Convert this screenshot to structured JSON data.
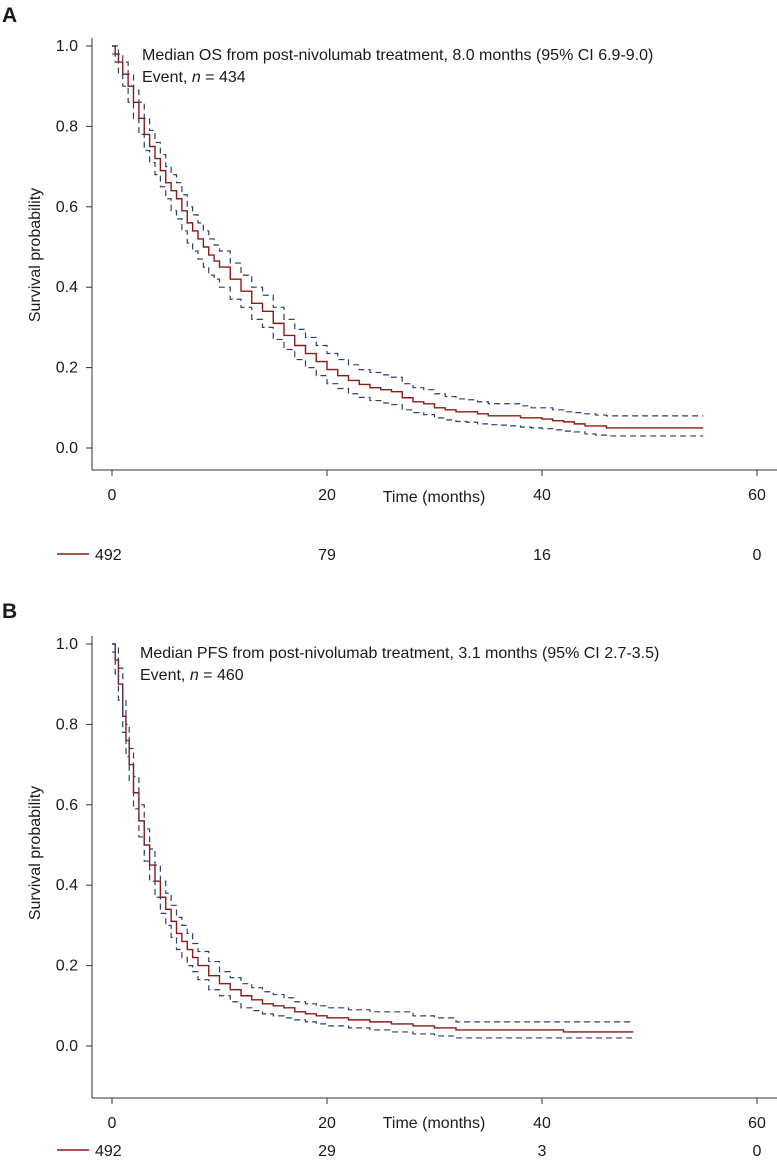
{
  "chart_data": [
    {
      "panel": "A",
      "type": "line",
      "annotation": {
        "line1": "Median OS from post-nivolumab treatment, 8.0 months (95% CI 6.9-9.0)",
        "line2_prefix": "Event, ",
        "line2_var": "n",
        "line2_suffix": " = 434"
      },
      "xlabel": "Time (months)",
      "ylabel": "Survival probability",
      "xlim": [
        0,
        60
      ],
      "ylim": [
        0,
        1
      ],
      "xticks": [
        0,
        20,
        40,
        60
      ],
      "yticks": [
        0.0,
        0.2,
        0.4,
        0.6,
        0.8,
        1.0
      ],
      "xtick_labels": [
        "0",
        "20",
        "40",
        "60"
      ],
      "ytick_labels": [
        "0.0",
        "0.2",
        "0.4",
        "0.6",
        "0.8",
        "1.0"
      ],
      "grid": false,
      "series": [
        {
          "role": "estimate",
          "color": "#8b1a1a",
          "style": "solid",
          "x": [
            0,
            0.3,
            0.6,
            1,
            1.5,
            2,
            2.5,
            3,
            3.5,
            4,
            4.5,
            5,
            5.5,
            6,
            6.5,
            7,
            7.5,
            8,
            8.5,
            9,
            9.5,
            10,
            11,
            12,
            13,
            14,
            15,
            16,
            17,
            18,
            19,
            20,
            21,
            22,
            23,
            24,
            25,
            26,
            27,
            28,
            29,
            30,
            31,
            32,
            33,
            34,
            35,
            36,
            37,
            38,
            39,
            40,
            41,
            42,
            43,
            44,
            45,
            46,
            47,
            48,
            49,
            50,
            51,
            52,
            53,
            54,
            55
          ],
          "y": [
            1.0,
            0.98,
            0.96,
            0.93,
            0.9,
            0.86,
            0.82,
            0.78,
            0.75,
            0.72,
            0.69,
            0.66,
            0.64,
            0.62,
            0.59,
            0.56,
            0.54,
            0.52,
            0.5,
            0.48,
            0.465,
            0.45,
            0.42,
            0.39,
            0.36,
            0.34,
            0.31,
            0.28,
            0.255,
            0.235,
            0.215,
            0.195,
            0.18,
            0.168,
            0.158,
            0.15,
            0.145,
            0.14,
            0.125,
            0.115,
            0.11,
            0.1,
            0.095,
            0.09,
            0.09,
            0.085,
            0.08,
            0.08,
            0.08,
            0.075,
            0.075,
            0.072,
            0.068,
            0.065,
            0.06,
            0.055,
            0.055,
            0.05,
            0.05,
            0.05,
            0.05,
            0.05,
            0.05,
            0.05,
            0.05,
            0.05,
            0.05
          ]
        },
        {
          "role": "upper-ci",
          "color": "#2c3e6e",
          "style": "dashed",
          "x": [
            0,
            0.3,
            0.6,
            1,
            1.5,
            2,
            2.5,
            3,
            3.5,
            4,
            4.5,
            5,
            5.5,
            6,
            6.5,
            7,
            7.5,
            8,
            8.5,
            9,
            9.5,
            10,
            11,
            12,
            13,
            14,
            15,
            16,
            17,
            18,
            19,
            20,
            21,
            22,
            23,
            24,
            25,
            26,
            27,
            28,
            29,
            30,
            31,
            32,
            33,
            34,
            35,
            36,
            37,
            38,
            39,
            40,
            41,
            42,
            43,
            44,
            45,
            46,
            47,
            48,
            49,
            50,
            51,
            52,
            53,
            54,
            55
          ],
          "y": [
            1.0,
            1.0,
            0.98,
            0.96,
            0.93,
            0.89,
            0.86,
            0.82,
            0.79,
            0.76,
            0.73,
            0.7,
            0.68,
            0.66,
            0.63,
            0.6,
            0.58,
            0.56,
            0.54,
            0.52,
            0.505,
            0.49,
            0.46,
            0.43,
            0.4,
            0.38,
            0.35,
            0.32,
            0.295,
            0.275,
            0.255,
            0.235,
            0.22,
            0.207,
            0.195,
            0.188,
            0.182,
            0.176,
            0.16,
            0.15,
            0.145,
            0.135,
            0.128,
            0.122,
            0.12,
            0.115,
            0.11,
            0.11,
            0.11,
            0.105,
            0.1,
            0.1,
            0.095,
            0.09,
            0.088,
            0.085,
            0.082,
            0.08,
            0.08,
            0.08,
            0.08,
            0.08,
            0.08,
            0.08,
            0.08,
            0.08,
            0.08
          ]
        },
        {
          "role": "lower-ci",
          "color": "#2c3e6e",
          "style": "dashed",
          "x": [
            0,
            0.3,
            0.6,
            1,
            1.5,
            2,
            2.5,
            3,
            3.5,
            4,
            4.5,
            5,
            5.5,
            6,
            6.5,
            7,
            7.5,
            8,
            8.5,
            9,
            9.5,
            10,
            11,
            12,
            13,
            14,
            15,
            16,
            17,
            18,
            19,
            20,
            21,
            22,
            23,
            24,
            25,
            26,
            27,
            28,
            29,
            30,
            31,
            32,
            33,
            34,
            35,
            36,
            37,
            38,
            39,
            40,
            41,
            42,
            43,
            44,
            45,
            46,
            47,
            48,
            49,
            50,
            51,
            52,
            53,
            54,
            55
          ],
          "y": [
            0.98,
            0.96,
            0.93,
            0.9,
            0.86,
            0.82,
            0.78,
            0.74,
            0.71,
            0.68,
            0.65,
            0.62,
            0.59,
            0.57,
            0.54,
            0.51,
            0.49,
            0.47,
            0.45,
            0.43,
            0.42,
            0.4,
            0.37,
            0.35,
            0.32,
            0.3,
            0.27,
            0.245,
            0.22,
            0.2,
            0.18,
            0.16,
            0.148,
            0.135,
            0.126,
            0.118,
            0.112,
            0.108,
            0.095,
            0.088,
            0.083,
            0.075,
            0.07,
            0.066,
            0.064,
            0.06,
            0.058,
            0.057,
            0.055,
            0.052,
            0.05,
            0.048,
            0.045,
            0.042,
            0.04,
            0.035,
            0.032,
            0.03,
            0.03,
            0.03,
            0.03,
            0.03,
            0.03,
            0.03,
            0.03,
            0.03,
            0.03
          ]
        }
      ],
      "risk_table": {
        "times": [
          0,
          20,
          40,
          60
        ],
        "counts": [
          "492",
          "79",
          "16",
          "0"
        ],
        "swatch_color": "#8b1a1a"
      }
    },
    {
      "panel": "B",
      "type": "line",
      "annotation": {
        "line1": "Median PFS from post-nivolumab treatment, 3.1 months (95% CI 2.7-3.5)",
        "line2_prefix": "Event, ",
        "line2_var": "n",
        "line2_suffix": " = 460"
      },
      "xlabel": "Time (months)",
      "ylabel": "Survival probability",
      "xlim": [
        0,
        60
      ],
      "ylim": [
        0,
        1
      ],
      "xticks": [
        0,
        20,
        40,
        60
      ],
      "yticks": [
        0.0,
        0.2,
        0.4,
        0.6,
        0.8,
        1.0
      ],
      "xtick_labels": [
        "0",
        "20",
        "40",
        "60"
      ],
      "ytick_labels": [
        "0.0",
        "0.2",
        "0.4",
        "0.6",
        "0.8",
        "1.0"
      ],
      "grid": false,
      "series": [
        {
          "role": "estimate",
          "color": "#8b1a1a",
          "style": "solid",
          "x": [
            0,
            0.3,
            0.6,
            1,
            1.3,
            1.6,
            2,
            2.5,
            3,
            3.5,
            4,
            4.5,
            5,
            5.5,
            6,
            6.5,
            7,
            7.5,
            8,
            9,
            10,
            11,
            12,
            13,
            14,
            15,
            16,
            17,
            18,
            19,
            20,
            22,
            24,
            26,
            28,
            30,
            32,
            34,
            36,
            38,
            40,
            42,
            44,
            46,
            48.5
          ],
          "y": [
            1.0,
            0.96,
            0.9,
            0.82,
            0.76,
            0.7,
            0.63,
            0.56,
            0.5,
            0.45,
            0.41,
            0.37,
            0.34,
            0.31,
            0.28,
            0.26,
            0.24,
            0.22,
            0.2,
            0.175,
            0.155,
            0.14,
            0.125,
            0.115,
            0.105,
            0.1,
            0.095,
            0.085,
            0.08,
            0.075,
            0.07,
            0.065,
            0.06,
            0.055,
            0.05,
            0.045,
            0.04,
            0.04,
            0.04,
            0.04,
            0.04,
            0.035,
            0.035,
            0.035,
            0.035
          ]
        },
        {
          "role": "upper-ci",
          "color": "#2c3e6e",
          "style": "dashed",
          "x": [
            0,
            0.3,
            0.6,
            1,
            1.3,
            1.6,
            2,
            2.5,
            3,
            3.5,
            4,
            4.5,
            5,
            5.5,
            6,
            6.5,
            7,
            7.5,
            8,
            9,
            10,
            11,
            12,
            13,
            14,
            15,
            16,
            17,
            18,
            19,
            20,
            22,
            24,
            26,
            28,
            30,
            32,
            34,
            36,
            38,
            40,
            42,
            44,
            46,
            48.5
          ],
          "y": [
            1.0,
            0.99,
            0.94,
            0.86,
            0.8,
            0.74,
            0.67,
            0.6,
            0.54,
            0.49,
            0.45,
            0.41,
            0.38,
            0.35,
            0.32,
            0.3,
            0.28,
            0.255,
            0.235,
            0.21,
            0.185,
            0.17,
            0.155,
            0.145,
            0.135,
            0.128,
            0.12,
            0.11,
            0.105,
            0.1,
            0.095,
            0.09,
            0.085,
            0.085,
            0.075,
            0.07,
            0.06,
            0.06,
            0.06,
            0.06,
            0.06,
            0.06,
            0.06,
            0.06,
            0.06
          ]
        },
        {
          "role": "lower-ci",
          "color": "#2c3e6e",
          "style": "dashed",
          "x": [
            0,
            0.3,
            0.6,
            1,
            1.3,
            1.6,
            2,
            2.5,
            3,
            3.5,
            4,
            4.5,
            5,
            5.5,
            6,
            6.5,
            7,
            7.5,
            8,
            9,
            10,
            11,
            12,
            13,
            14,
            15,
            16,
            17,
            18,
            19,
            20,
            22,
            24,
            26,
            28,
            30,
            32,
            34,
            36,
            38,
            40,
            42,
            44,
            46,
            48.5
          ],
          "y": [
            0.98,
            0.92,
            0.86,
            0.78,
            0.72,
            0.66,
            0.59,
            0.52,
            0.46,
            0.41,
            0.37,
            0.33,
            0.3,
            0.27,
            0.24,
            0.22,
            0.2,
            0.185,
            0.165,
            0.14,
            0.125,
            0.11,
            0.095,
            0.088,
            0.08,
            0.075,
            0.07,
            0.065,
            0.06,
            0.055,
            0.05,
            0.045,
            0.04,
            0.035,
            0.03,
            0.025,
            0.02,
            0.02,
            0.02,
            0.02,
            0.02,
            0.02,
            0.02,
            0.02,
            0.02
          ]
        }
      ],
      "risk_table": {
        "times": [
          0,
          20,
          40,
          60
        ],
        "counts": [
          "492",
          "29",
          "3",
          "0"
        ],
        "swatch_color": "#8b1a1a"
      }
    }
  ]
}
